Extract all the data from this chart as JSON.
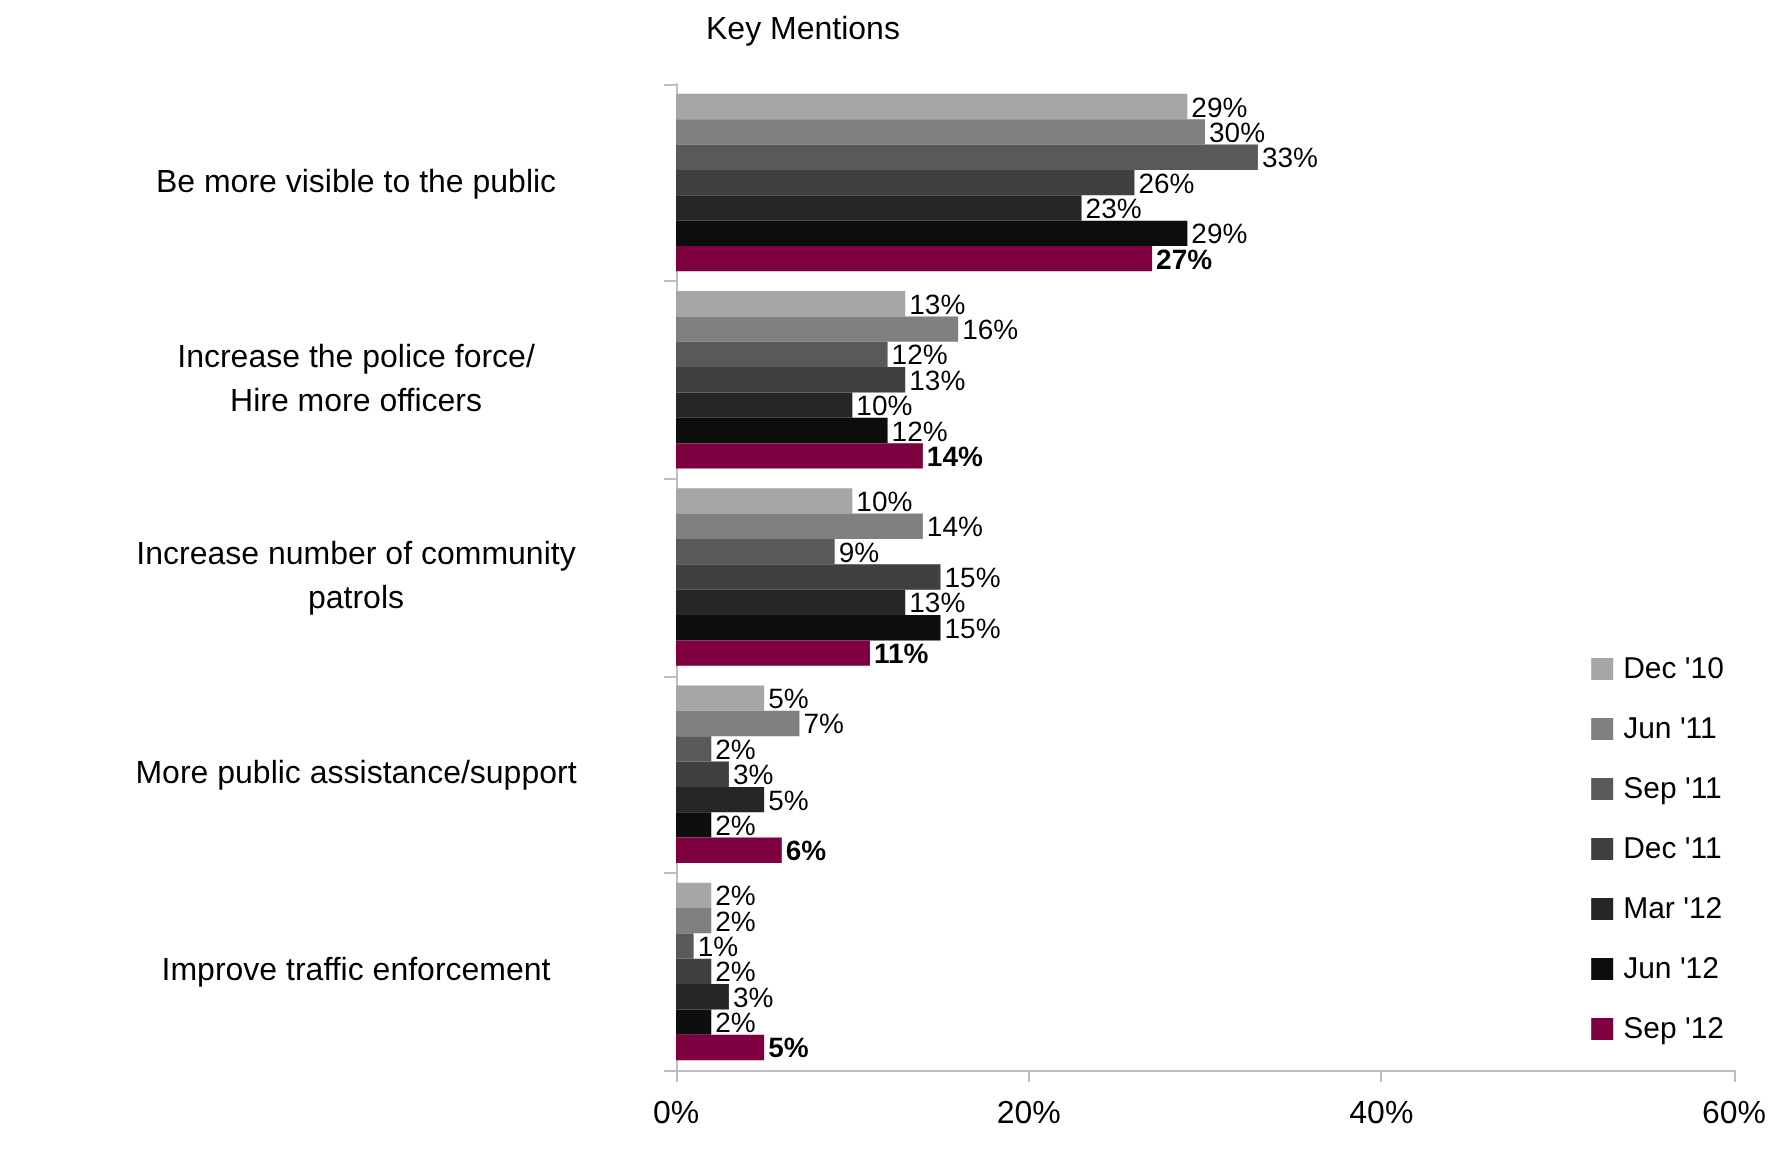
{
  "chart_data": {
    "type": "bar",
    "orientation": "horizontal",
    "subtitle": "Key Mentions",
    "categories": [
      "Be more visible to the public",
      "Increase the police force/\nHire more officers",
      "Increase number of community\npatrols",
      "More public assistance/support",
      "Improve traffic enforcement"
    ],
    "series": [
      {
        "name": "Dec '10",
        "color": "#a6a6a6",
        "values": [
          29,
          13,
          10,
          5,
          2
        ],
        "value_labels": [
          "29%",
          "13%",
          "10%",
          "5%",
          "2%"
        ]
      },
      {
        "name": "Jun '11",
        "color": "#808080",
        "values": [
          30,
          16,
          14,
          7,
          2
        ],
        "value_labels": [
          "30%",
          "16%",
          "14%",
          "7%",
          "2%"
        ]
      },
      {
        "name": "Sep '11",
        "color": "#595959",
        "values": [
          33,
          12,
          9,
          2,
          1
        ],
        "value_labels": [
          "33%",
          "12%",
          "9%",
          "2%",
          "1%"
        ]
      },
      {
        "name": "Dec '11",
        "color": "#404040",
        "values": [
          26,
          13,
          15,
          3,
          2
        ],
        "value_labels": [
          "26%",
          "13%",
          "15%",
          "3%",
          "2%"
        ]
      },
      {
        "name": "Mar '12",
        "color": "#262626",
        "values": [
          23,
          10,
          13,
          5,
          3
        ],
        "value_labels": [
          "23%",
          "10%",
          "13%",
          "5%",
          "3%"
        ]
      },
      {
        "name": "Jun '12",
        "color": "#0d0d0d",
        "values": [
          29,
          12,
          15,
          2,
          2
        ],
        "value_labels": [
          "29%",
          "12%",
          "15%",
          "2%",
          "2%"
        ]
      },
      {
        "name": "Sep '12",
        "color": "#7f0040",
        "values": [
          27,
          14,
          11,
          6,
          5
        ],
        "value_labels": [
          "27%",
          "14%",
          "11%",
          "6%",
          "5%"
        ]
      }
    ],
    "xlim": [
      0,
      60
    ],
    "xticks": [
      {
        "value": 0,
        "label": "0%"
      },
      {
        "value": 20,
        "label": "20%"
      },
      {
        "value": 40,
        "label": "40%"
      },
      {
        "value": 60,
        "label": "60%"
      }
    ],
    "grid": false,
    "legend": "right"
  }
}
